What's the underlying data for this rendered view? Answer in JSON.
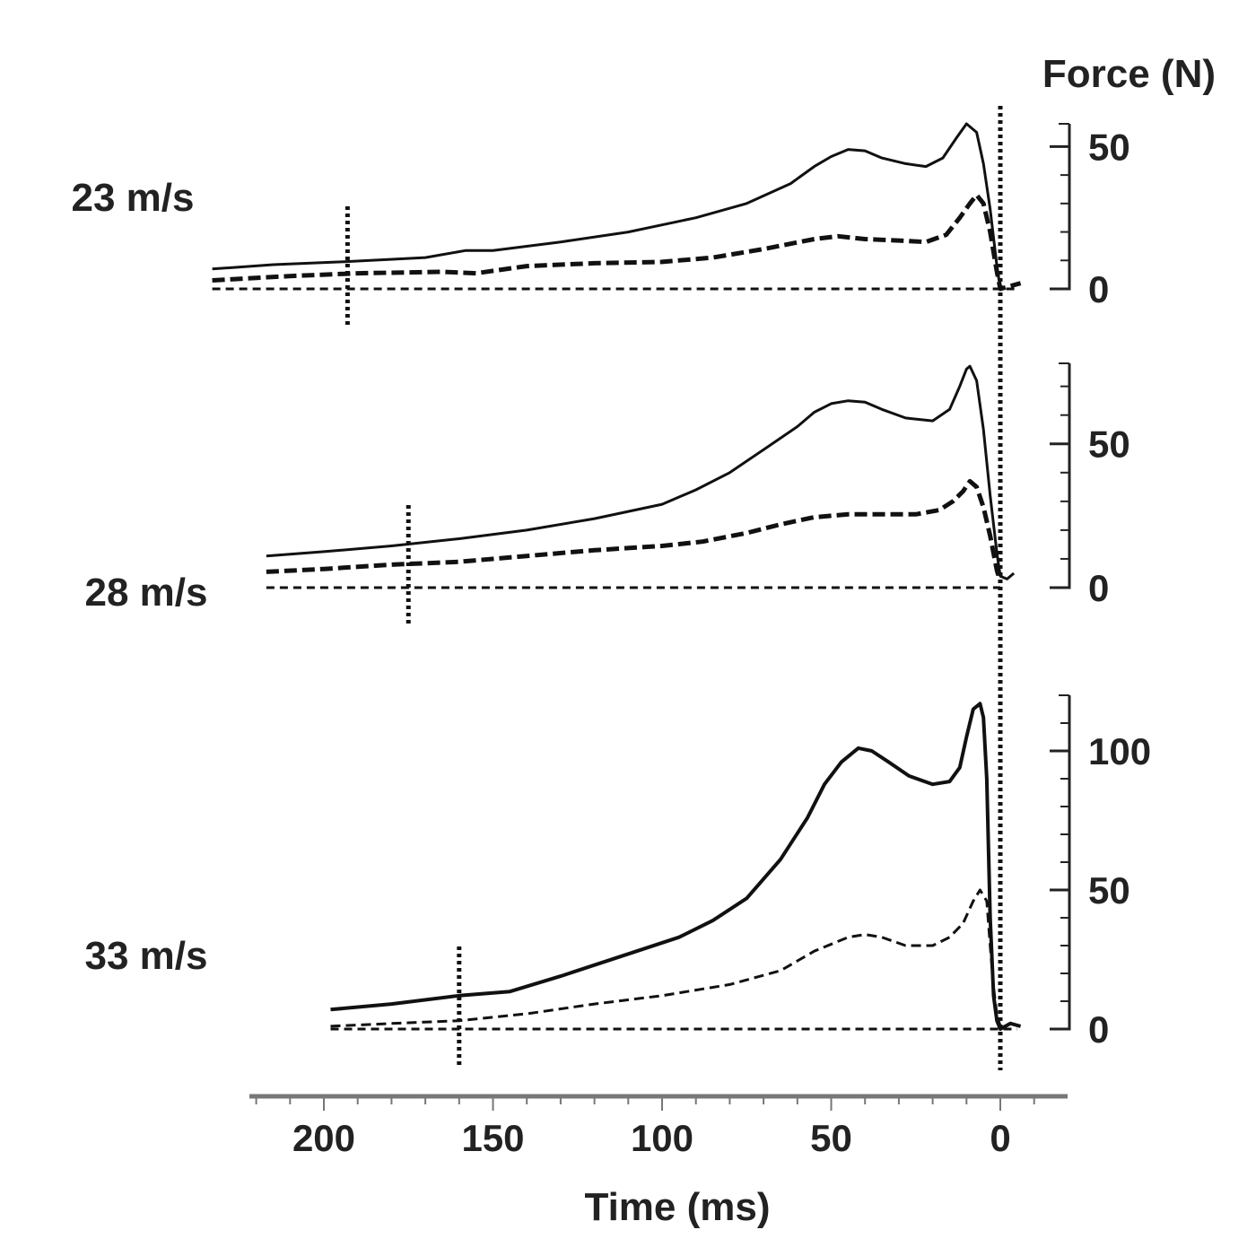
{
  "chart_data": {
    "type": "line",
    "y_axis_title": "Force (N)",
    "x_axis_title": "Time (ms)",
    "x_axis": {
      "range": [
        220,
        -10
      ],
      "reversed": true,
      "ticks": [
        200,
        150,
        100,
        50,
        0
      ],
      "tick_labels": [
        "200",
        "150",
        "100",
        "50",
        "0"
      ],
      "minor_tick_step": 10
    },
    "zero_line_x": 0,
    "grid": false,
    "legend": "none",
    "panels": [
      {
        "label": "23 m/s",
        "ylim": [
          0,
          58
        ],
        "y_ticks": [
          0,
          50
        ],
        "y_tick_labels": [
          "0",
          "50"
        ],
        "marker_x": 193,
        "series": [
          {
            "style": "solid",
            "points": [
              [
                233,
                7
              ],
              [
                215,
                8.5
              ],
              [
                195,
                9.5
              ],
              [
                170,
                11
              ],
              [
                158,
                13.5
              ],
              [
                150,
                13.5
              ],
              [
                130,
                16.5
              ],
              [
                110,
                20
              ],
              [
                90,
                25
              ],
              [
                75,
                30
              ],
              [
                62,
                37
              ],
              [
                55,
                43
              ],
              [
                50,
                46.5
              ],
              [
                45,
                49
              ],
              [
                40,
                48.5
              ],
              [
                35,
                46
              ],
              [
                28,
                44
              ],
              [
                22,
                43
              ],
              [
                17,
                46
              ],
              [
                13,
                53
              ],
              [
                10,
                58
              ],
              [
                7,
                55
              ],
              [
                5,
                44
              ],
              [
                3,
                28
              ],
              [
                1,
                8
              ],
              [
                0,
                0
              ]
            ]
          },
          {
            "style": "dashed",
            "points": [
              [
                233,
                3
              ],
              [
                210,
                4.5
              ],
              [
                190,
                5.5
              ],
              [
                165,
                6
              ],
              [
                155,
                5.5
              ],
              [
                140,
                8
              ],
              [
                120,
                9
              ],
              [
                100,
                9.5
              ],
              [
                85,
                11
              ],
              [
                70,
                14
              ],
              [
                55,
                17.5
              ],
              [
                48,
                18.5
              ],
              [
                40,
                17.5
              ],
              [
                30,
                17
              ],
              [
                22,
                16.5
              ],
              [
                16,
                19
              ],
              [
                12,
                25
              ],
              [
                9,
                30
              ],
              [
                7,
                33
              ],
              [
                5,
                30
              ],
              [
                3,
                20
              ],
              [
                1,
                6
              ],
              [
                0,
                0
              ],
              [
                -3,
                1
              ],
              [
                -6,
                2
              ]
            ]
          },
          {
            "style": "baseline",
            "points": [
              [
                233,
                0
              ],
              [
                -5,
                0
              ]
            ]
          }
        ]
      },
      {
        "label": "28 m/s",
        "ylim": [
          0,
          78
        ],
        "y_ticks": [
          0,
          50
        ],
        "y_tick_labels": [
          "0",
          "50"
        ],
        "marker_x": 175,
        "series": [
          {
            "style": "solid",
            "points": [
              [
                217,
                11
              ],
              [
                200,
                12.5
              ],
              [
                180,
                14.5
              ],
              [
                160,
                17
              ],
              [
                140,
                20
              ],
              [
                120,
                24
              ],
              [
                100,
                29
              ],
              [
                90,
                34
              ],
              [
                80,
                40
              ],
              [
                70,
                48
              ],
              [
                60,
                56
              ],
              [
                55,
                61
              ],
              [
                50,
                64
              ],
              [
                45,
                65
              ],
              [
                40,
                64.5
              ],
              [
                35,
                62
              ],
              [
                28,
                59
              ],
              [
                20,
                58
              ],
              [
                15,
                62
              ],
              [
                12,
                70
              ],
              [
                10,
                76
              ],
              [
                9,
                77
              ],
              [
                7,
                72
              ],
              [
                5,
                55
              ],
              [
                3,
                32
              ],
              [
                1,
                12
              ],
              [
                0,
                4
              ],
              [
                -2,
                3
              ],
              [
                -4,
                5
              ]
            ]
          },
          {
            "style": "dashed",
            "points": [
              [
                217,
                5.5
              ],
              [
                200,
                6.5
              ],
              [
                180,
                8
              ],
              [
                160,
                9
              ],
              [
                140,
                11
              ],
              [
                120,
                13
              ],
              [
                100,
                14.5
              ],
              [
                88,
                16
              ],
              [
                75,
                19
              ],
              [
                65,
                22
              ],
              [
                55,
                24.5
              ],
              [
                45,
                25.5
              ],
              [
                35,
                25.5
              ],
              [
                25,
                25.5
              ],
              [
                18,
                27
              ],
              [
                14,
                30
              ],
              [
                11,
                33.5
              ],
              [
                9,
                37
              ],
              [
                7,
                35
              ],
              [
                5,
                28
              ],
              [
                3,
                18
              ],
              [
                1,
                6
              ],
              [
                0,
                2
              ]
            ]
          },
          {
            "style": "baseline",
            "points": [
              [
                217,
                0
              ],
              [
                0,
                0
              ]
            ]
          }
        ]
      },
      {
        "label": "33 m/s",
        "ylim": [
          0,
          120
        ],
        "y_ticks": [
          0,
          50,
          100
        ],
        "y_tick_labels": [
          "0",
          "50",
          "100"
        ],
        "marker_x": 160,
        "series": [
          {
            "style": "solid",
            "points": [
              [
                198,
                7
              ],
              [
                180,
                9
              ],
              [
                160,
                12
              ],
              [
                145,
                13.5
              ],
              [
                130,
                19
              ],
              [
                110,
                27
              ],
              [
                95,
                33
              ],
              [
                85,
                39
              ],
              [
                75,
                47
              ],
              [
                65,
                61
              ],
              [
                57,
                76
              ],
              [
                52,
                88
              ],
              [
                47,
                96
              ],
              [
                42,
                101
              ],
              [
                38,
                100
              ],
              [
                33,
                96
              ],
              [
                27,
                91
              ],
              [
                20,
                88
              ],
              [
                15,
                89
              ],
              [
                12,
                94
              ],
              [
                10,
                105
              ],
              [
                8,
                115
              ],
              [
                6,
                117
              ],
              [
                5,
                112
              ],
              [
                4,
                90
              ],
              [
                3,
                40
              ],
              [
                2,
                12
              ],
              [
                1,
                3
              ],
              [
                0,
                0
              ],
              [
                -3,
                2
              ],
              [
                -6,
                1
              ]
            ]
          },
          {
            "style": "dashed",
            "points": [
              [
                198,
                1
              ],
              [
                180,
                2
              ],
              [
                160,
                3
              ],
              [
                140,
                5.5
              ],
              [
                120,
                9
              ],
              [
                100,
                12
              ],
              [
                80,
                16
              ],
              [
                65,
                21
              ],
              [
                55,
                28
              ],
              [
                45,
                33
              ],
              [
                40,
                34
              ],
              [
                35,
                33
              ],
              [
                28,
                30
              ],
              [
                20,
                30
              ],
              [
                15,
                33
              ],
              [
                11,
                38
              ],
              [
                8,
                46
              ],
              [
                6,
                50
              ],
              [
                4,
                46
              ],
              [
                3,
                30
              ],
              [
                2,
                15
              ],
              [
                1,
                5
              ],
              [
                0,
                1
              ]
            ]
          },
          {
            "style": "baseline",
            "points": [
              [
                198,
                0
              ],
              [
                -5,
                0
              ]
            ]
          }
        ]
      }
    ]
  }
}
